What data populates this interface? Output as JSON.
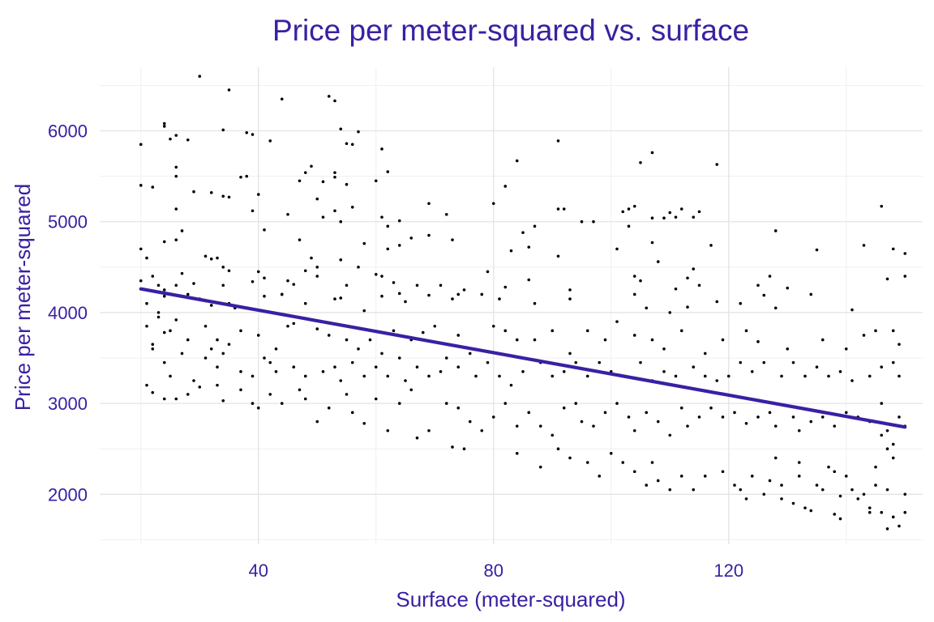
{
  "chart_data": {
    "type": "scatter",
    "title": "Price per meter-squared vs. surface",
    "xlabel": "Surface (meter-squared)",
    "ylabel": "Price per meter-squared",
    "xlim": [
      13,
      153
    ],
    "ylim": [
      1450,
      6700
    ],
    "x_ticks": [
      40,
      80,
      120
    ],
    "x_minor_ticks": [
      20,
      60,
      100,
      140
    ],
    "y_ticks": [
      2000,
      3000,
      4000,
      5000,
      6000
    ],
    "y_minor_ticks": [
      1500,
      2500,
      3500,
      4500,
      5500,
      6500
    ],
    "grid": true,
    "legend": "none",
    "colors": {
      "text": "#3a20a3",
      "points": "#000000",
      "trend": "#3a20a3"
    },
    "trend_line": {
      "x": [
        20,
        150
      ],
      "y": [
        4260,
        2740
      ]
    },
    "points": [
      [
        30,
        6600
      ],
      [
        35,
        6450
      ],
      [
        44,
        6350
      ],
      [
        52,
        6380
      ],
      [
        53,
        6330
      ],
      [
        24,
        6080
      ],
      [
        24,
        6050
      ],
      [
        34,
        6010
      ],
      [
        38,
        5980
      ],
      [
        39,
        5960
      ],
      [
        26,
        5950
      ],
      [
        25,
        5910
      ],
      [
        28,
        5900
      ],
      [
        54,
        6020
      ],
      [
        57,
        5990
      ],
      [
        20,
        5850
      ],
      [
        42,
        5890
      ],
      [
        55,
        5860
      ],
      [
        56,
        5850
      ],
      [
        91,
        5890
      ],
      [
        61,
        5800
      ],
      [
        84,
        5670
      ],
      [
        107,
        5760
      ],
      [
        118,
        5630
      ],
      [
        105,
        5650
      ],
      [
        49,
        5610
      ],
      [
        26,
        5600
      ],
      [
        48,
        5540
      ],
      [
        53,
        5540
      ],
      [
        53,
        5490
      ],
      [
        62,
        5550
      ],
      [
        26,
        5500
      ],
      [
        37,
        5490
      ],
      [
        38,
        5500
      ],
      [
        47,
        5450
      ],
      [
        51,
        5440
      ],
      [
        55,
        5410
      ],
      [
        60,
        5450
      ],
      [
        20,
        5400
      ],
      [
        40,
        5300
      ],
      [
        22,
        5380
      ],
      [
        29,
        5330
      ],
      [
        32,
        5320
      ],
      [
        34,
        5280
      ],
      [
        35,
        5270
      ],
      [
        50,
        5250
      ],
      [
        56,
        5160
      ],
      [
        82,
        5390
      ],
      [
        69,
        5200
      ],
      [
        72,
        5080
      ],
      [
        80,
        5200
      ],
      [
        91,
        5140
      ],
      [
        92,
        5140
      ],
      [
        103,
        5140
      ],
      [
        102,
        5110
      ],
      [
        104,
        5170
      ],
      [
        110,
        5100
      ],
      [
        112,
        5140
      ],
      [
        115,
        5110
      ],
      [
        111,
        5050
      ],
      [
        109,
        5040
      ],
      [
        114,
        5050
      ],
      [
        26,
        5140
      ],
      [
        39,
        5120
      ],
      [
        45,
        5080
      ],
      [
        51,
        5050
      ],
      [
        53,
        5120
      ],
      [
        54,
        5000
      ],
      [
        61,
        5050
      ],
      [
        62,
        4950
      ],
      [
        64,
        5010
      ],
      [
        85,
        4880
      ],
      [
        95,
        5000
      ],
      [
        97,
        5000
      ],
      [
        103,
        4950
      ],
      [
        107,
        5040
      ],
      [
        128,
        4900
      ],
      [
        146,
        5170
      ],
      [
        27,
        4900
      ],
      [
        26,
        4800
      ],
      [
        41,
        4910
      ],
      [
        47,
        4800
      ],
      [
        58,
        4760
      ],
      [
        64,
        4740
      ],
      [
        73,
        4800
      ],
      [
        87,
        4950
      ],
      [
        20,
        4700
      ],
      [
        21,
        4600
      ],
      [
        24,
        4780
      ],
      [
        31,
        4620
      ],
      [
        32,
        4590
      ],
      [
        33,
        4600
      ],
      [
        34,
        4500
      ],
      [
        35,
        4460
      ],
      [
        40,
        4450
      ],
      [
        49,
        4600
      ],
      [
        48,
        4460
      ],
      [
        50,
        4500
      ],
      [
        54,
        4580
      ],
      [
        57,
        4500
      ],
      [
        62,
        4700
      ],
      [
        66,
        4820
      ],
      [
        69,
        4850
      ],
      [
        83,
        4680
      ],
      [
        86,
        4720
      ],
      [
        91,
        4620
      ],
      [
        101,
        4700
      ],
      [
        107,
        4770
      ],
      [
        117,
        4740
      ],
      [
        108,
        4560
      ],
      [
        114,
        4480
      ],
      [
        127,
        4400
      ],
      [
        135,
        4690
      ],
      [
        143,
        4740
      ],
      [
        148,
        4700
      ],
      [
        150,
        4650
      ],
      [
        22,
        4400
      ],
      [
        23,
        4300
      ],
      [
        24,
        4250
      ],
      [
        27,
        4430
      ],
      [
        29,
        4320
      ],
      [
        34,
        4300
      ],
      [
        39,
        4340
      ],
      [
        41,
        4380
      ],
      [
        44,
        4200
      ],
      [
        45,
        4350
      ],
      [
        46,
        4310
      ],
      [
        50,
        4400
      ],
      [
        55,
        4300
      ],
      [
        60,
        4420
      ],
      [
        61,
        4400
      ],
      [
        63,
        4330
      ],
      [
        67,
        4300
      ],
      [
        71,
        4300
      ],
      [
        74,
        4200
      ],
      [
        79,
        4450
      ],
      [
        82,
        4280
      ],
      [
        86,
        4360
      ],
      [
        93,
        4250
      ],
      [
        104,
        4400
      ],
      [
        105,
        4350
      ],
      [
        111,
        4260
      ],
      [
        113,
        4380
      ],
      [
        115,
        4300
      ],
      [
        125,
        4300
      ],
      [
        126,
        4190
      ],
      [
        130,
        4270
      ],
      [
        134,
        4200
      ],
      [
        147,
        4370
      ],
      [
        150,
        4400
      ],
      [
        20,
        4350
      ],
      [
        21,
        4100
      ],
      [
        23,
        4000
      ],
      [
        23,
        3950
      ],
      [
        24,
        4180
      ],
      [
        26,
        4300
      ],
      [
        28,
        4200
      ],
      [
        30,
        4150
      ],
      [
        32,
        4080
      ],
      [
        35,
        4100
      ],
      [
        36,
        4050
      ],
      [
        41,
        4180
      ],
      [
        44,
        4200
      ],
      [
        48,
        4100
      ],
      [
        53,
        4150
      ],
      [
        54,
        4160
      ],
      [
        58,
        4020
      ],
      [
        61,
        4180
      ],
      [
        64,
        4210
      ],
      [
        65,
        4120
      ],
      [
        69,
        4190
      ],
      [
        73,
        4150
      ],
      [
        75,
        4250
      ],
      [
        78,
        4200
      ],
      [
        81,
        4150
      ],
      [
        87,
        4100
      ],
      [
        93,
        4150
      ],
      [
        104,
        4200
      ],
      [
        106,
        4050
      ],
      [
        110,
        4000
      ],
      [
        113,
        4060
      ],
      [
        118,
        4120
      ],
      [
        122,
        4100
      ],
      [
        128,
        4050
      ],
      [
        141,
        4030
      ],
      [
        21,
        3850
      ],
      [
        22,
        3650
      ],
      [
        24,
        3780
      ],
      [
        25,
        3800
      ],
      [
        26,
        3920
      ],
      [
        28,
        3700
      ],
      [
        31,
        3850
      ],
      [
        32,
        3600
      ],
      [
        33,
        3700
      ],
      [
        35,
        3650
      ],
      [
        37,
        3800
      ],
      [
        40,
        3750
      ],
      [
        43,
        3600
      ],
      [
        45,
        3850
      ],
      [
        46,
        3880
      ],
      [
        50,
        3820
      ],
      [
        52,
        3750
      ],
      [
        55,
        3700
      ],
      [
        57,
        3600
      ],
      [
        59,
        3700
      ],
      [
        61,
        3550
      ],
      [
        63,
        3800
      ],
      [
        66,
        3700
      ],
      [
        68,
        3780
      ],
      [
        70,
        3850
      ],
      [
        74,
        3750
      ],
      [
        76,
        3550
      ],
      [
        80,
        3850
      ],
      [
        82,
        3800
      ],
      [
        84,
        3700
      ],
      [
        87,
        3700
      ],
      [
        90,
        3800
      ],
      [
        93,
        3550
      ],
      [
        96,
        3800
      ],
      [
        99,
        3700
      ],
      [
        101,
        3900
      ],
      [
        104,
        3750
      ],
      [
        107,
        3700
      ],
      [
        109,
        3600
      ],
      [
        112,
        3800
      ],
      [
        116,
        3550
      ],
      [
        119,
        3700
      ],
      [
        123,
        3800
      ],
      [
        125,
        3680
      ],
      [
        130,
        3600
      ],
      [
        136,
        3700
      ],
      [
        140,
        3600
      ],
      [
        143,
        3750
      ],
      [
        145,
        3800
      ],
      [
        148,
        3800
      ],
      [
        149,
        3650
      ],
      [
        22,
        3600
      ],
      [
        24,
        3450
      ],
      [
        25,
        3300
      ],
      [
        27,
        3550
      ],
      [
        29,
        3250
      ],
      [
        31,
        3500
      ],
      [
        33,
        3400
      ],
      [
        34,
        3550
      ],
      [
        37,
        3350
      ],
      [
        39,
        3300
      ],
      [
        41,
        3500
      ],
      [
        42,
        3450
      ],
      [
        43,
        3350
      ],
      [
        46,
        3400
      ],
      [
        48,
        3300
      ],
      [
        51,
        3350
      ],
      [
        53,
        3400
      ],
      [
        54,
        3250
      ],
      [
        56,
        3450
      ],
      [
        58,
        3300
      ],
      [
        60,
        3400
      ],
      [
        62,
        3300
      ],
      [
        64,
        3500
      ],
      [
        65,
        3250
      ],
      [
        67,
        3400
      ],
      [
        69,
        3300
      ],
      [
        71,
        3350
      ],
      [
        72,
        3500
      ],
      [
        74,
        3400
      ],
      [
        77,
        3300
      ],
      [
        79,
        3450
      ],
      [
        81,
        3300
      ],
      [
        83,
        3200
      ],
      [
        85,
        3350
      ],
      [
        88,
        3450
      ],
      [
        90,
        3300
      ],
      [
        92,
        3350
      ],
      [
        94,
        3450
      ],
      [
        96,
        3300
      ],
      [
        98,
        3450
      ],
      [
        100,
        3350
      ],
      [
        102,
        3300
      ],
      [
        105,
        3450
      ],
      [
        107,
        3250
      ],
      [
        109,
        3350
      ],
      [
        111,
        3300
      ],
      [
        114,
        3400
      ],
      [
        116,
        3300
      ],
      [
        118,
        3250
      ],
      [
        120,
        3300
      ],
      [
        122,
        3450
      ],
      [
        124,
        3350
      ],
      [
        126,
        3450
      ],
      [
        129,
        3300
      ],
      [
        131,
        3450
      ],
      [
        133,
        3300
      ],
      [
        135,
        3400
      ],
      [
        137,
        3300
      ],
      [
        139,
        3350
      ],
      [
        141,
        3250
      ],
      [
        144,
        3300
      ],
      [
        146,
        3400
      ],
      [
        148,
        3450
      ],
      [
        149,
        3300
      ],
      [
        21,
        3200
      ],
      [
        22,
        3120
      ],
      [
        24,
        3050
      ],
      [
        26,
        3050
      ],
      [
        28,
        3100
      ],
      [
        30,
        3180
      ],
      [
        33,
        3200
      ],
      [
        34,
        3030
      ],
      [
        37,
        3150
      ],
      [
        39,
        3000
      ],
      [
        40,
        2950
      ],
      [
        42,
        3100
      ],
      [
        44,
        3000
      ],
      [
        47,
        3150
      ],
      [
        48,
        3050
      ],
      [
        50,
        2800
      ],
      [
        52,
        2950
      ],
      [
        55,
        3100
      ],
      [
        56,
        2900
      ],
      [
        58,
        2780
      ],
      [
        60,
        3050
      ],
      [
        62,
        2700
      ],
      [
        64,
        3000
      ],
      [
        66,
        3150
      ],
      [
        67,
        2620
      ],
      [
        69,
        2700
      ],
      [
        72,
        3000
      ],
      [
        74,
        2950
      ],
      [
        76,
        2800
      ],
      [
        78,
        2700
      ],
      [
        80,
        2850
      ],
      [
        82,
        3000
      ],
      [
        84,
        2750
      ],
      [
        86,
        2900
      ],
      [
        88,
        2750
      ],
      [
        90,
        2650
      ],
      [
        92,
        2950
      ],
      [
        94,
        3000
      ],
      [
        95,
        2800
      ],
      [
        97,
        2750
      ],
      [
        99,
        2900
      ],
      [
        101,
        3000
      ],
      [
        103,
        2850
      ],
      [
        104,
        2700
      ],
      [
        106,
        2900
      ],
      [
        108,
        2800
      ],
      [
        110,
        2650
      ],
      [
        112,
        2950
      ],
      [
        113,
        2750
      ],
      [
        115,
        2850
      ],
      [
        117,
        2950
      ],
      [
        119,
        2850
      ],
      [
        121,
        2900
      ],
      [
        123,
        2780
      ],
      [
        125,
        2850
      ],
      [
        127,
        2900
      ],
      [
        128,
        2750
      ],
      [
        131,
        2850
      ],
      [
        132,
        2700
      ],
      [
        134,
        2800
      ],
      [
        136,
        2850
      ],
      [
        138,
        2750
      ],
      [
        140,
        2900
      ],
      [
        142,
        2850
      ],
      [
        144,
        2800
      ],
      [
        146,
        3000
      ],
      [
        147,
        2700
      ],
      [
        149,
        2850
      ],
      [
        150,
        2750
      ],
      [
        73,
        2520
      ],
      [
        75,
        2500
      ],
      [
        84,
        2450
      ],
      [
        88,
        2300
      ],
      [
        91,
        2500
      ],
      [
        93,
        2400
      ],
      [
        96,
        2350
      ],
      [
        98,
        2200
      ],
      [
        100,
        2450
      ],
      [
        102,
        2350
      ],
      [
        104,
        2250
      ],
      [
        106,
        2100
      ],
      [
        107,
        2350
      ],
      [
        108,
        2150
      ],
      [
        110,
        2050
      ],
      [
        112,
        2200
      ],
      [
        114,
        2050
      ],
      [
        116,
        2200
      ],
      [
        119,
        2250
      ],
      [
        121,
        2100
      ],
      [
        122,
        2050
      ],
      [
        124,
        2200
      ],
      [
        126,
        2000
      ],
      [
        127,
        2150
      ],
      [
        128,
        2400
      ],
      [
        129,
        2100
      ],
      [
        131,
        1900
      ],
      [
        132,
        2200
      ],
      [
        133,
        1850
      ],
      [
        135,
        2100
      ],
      [
        136,
        2050
      ],
      [
        137,
        2300
      ],
      [
        138,
        2250
      ],
      [
        139,
        1980
      ],
      [
        140,
        2200
      ],
      [
        141,
        2050
      ],
      [
        142,
        1950
      ],
      [
        143,
        2000
      ],
      [
        144,
        1850
      ],
      [
        145,
        2100
      ],
      [
        146,
        1800
      ],
      [
        147,
        2050
      ],
      [
        148,
        1750
      ],
      [
        149,
        1650
      ],
      [
        150,
        2000
      ],
      [
        150,
        1800
      ],
      [
        138,
        1780
      ],
      [
        139,
        1730
      ],
      [
        134,
        1820
      ],
      [
        144,
        1800
      ],
      [
        147,
        1620
      ],
      [
        147,
        2500
      ],
      [
        146,
        2650
      ],
      [
        145,
        2300
      ],
      [
        148,
        2400
      ],
      [
        148,
        2550
      ],
      [
        132,
        2350
      ],
      [
        129,
        1950
      ],
      [
        123,
        1950
      ]
    ]
  }
}
